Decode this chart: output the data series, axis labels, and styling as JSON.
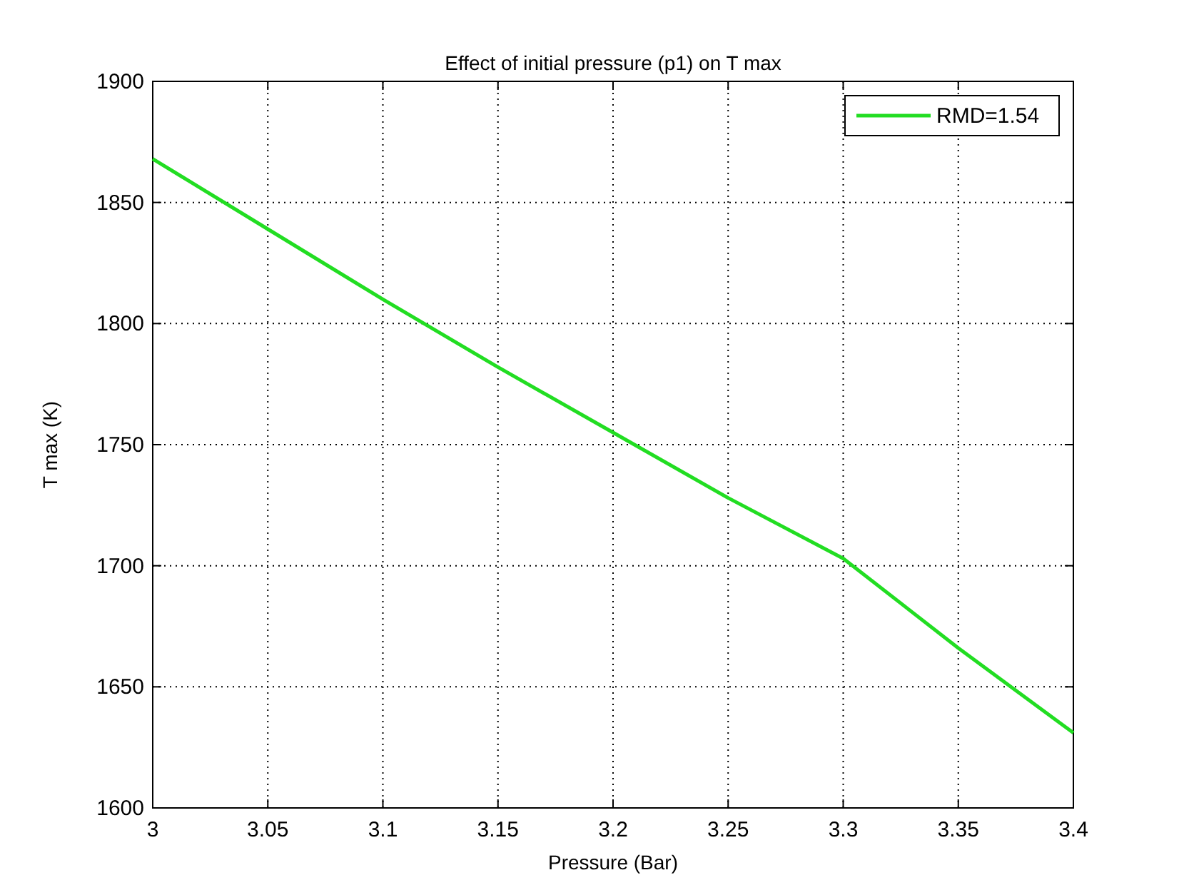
{
  "chart_data": {
    "type": "line",
    "title": "Effect of initial pressure (p1) on T max",
    "xlabel": "Pressure (Bar)",
    "ylabel": "T max (K)",
    "x": [
      3,
      3.05,
      3.1,
      3.15,
      3.2,
      3.25,
      3.3,
      3.35,
      3.4
    ],
    "series": [
      {
        "name": "RMD=1.54",
        "color": "#22dd22",
        "values": [
          1868,
          1839,
          1810,
          1782,
          1755,
          1728,
          1703,
          1666,
          1631
        ]
      }
    ],
    "xlim": [
      3,
      3.4
    ],
    "xticks": [
      3,
      3.05,
      3.1,
      3.15,
      3.2,
      3.25,
      3.3,
      3.35,
      3.4
    ],
    "ylim": [
      1600,
      1900
    ],
    "yticks": [
      1600,
      1650,
      1700,
      1750,
      1800,
      1850,
      1900
    ],
    "grid": true,
    "legend": "top right",
    "marker": "none",
    "line_style": "solid"
  }
}
